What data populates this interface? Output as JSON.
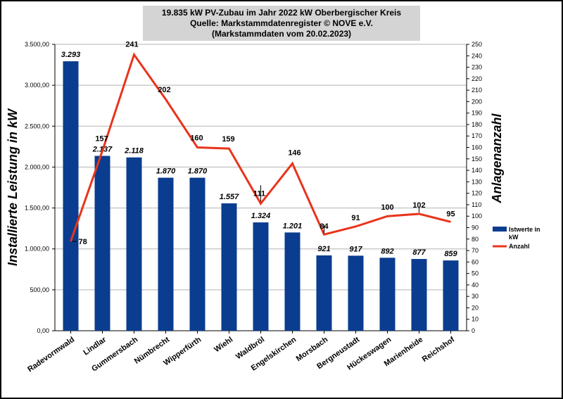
{
  "chart_data": {
    "type": "bar",
    "title_lines": [
      "19.835 kW  PV-Zubau  im Jahr 2022 kW  Oberbergischer Kreis",
      "Quelle: Markstammdatenregister © NOVE e.V.",
      "(Markstammdaten vom 20.02.2023)"
    ],
    "categories": [
      "Radevormwald",
      "Lindlar",
      "Gummersbach",
      "Nümbrecht",
      "Wipperfürth",
      "Wiehl",
      "Waldbröl",
      "Engelskirchen",
      "Morsbach",
      "Bergneustadt",
      "Hückeswagen",
      "Marienheide",
      "Reichshof"
    ],
    "series": [
      {
        "name": "Istwerte in kW",
        "type": "bar",
        "axis": "left",
        "color": "#0a3d8f",
        "values": [
          3293,
          2137,
          2118,
          1870,
          1870,
          1557,
          1324,
          1201,
          921,
          917,
          892,
          877,
          859
        ],
        "labels": [
          "3.293",
          "2.137",
          "2.118",
          "1.870",
          "1.870",
          "1.557",
          "1.324",
          "1.201",
          "921",
          "917",
          "892",
          "877",
          "859"
        ]
      },
      {
        "name": "Anzahl",
        "type": "line",
        "axis": "right",
        "color": "#e8341c",
        "values": [
          78,
          157,
          241,
          202,
          160,
          159,
          111,
          146,
          84,
          91,
          100,
          102,
          95
        ],
        "labels": [
          "78",
          "157",
          "241",
          "202",
          "160",
          "159",
          "111",
          "146",
          "84",
          "91",
          "100",
          "102",
          "95"
        ]
      }
    ],
    "ylabel": "Installierte Leistung in kW",
    "y2label": "Anlagenanzahl",
    "ylim": [
      0,
      3500
    ],
    "y2lim": [
      0,
      250
    ],
    "yticks": [
      "0,00",
      "500,00",
      "1.000,00",
      "1.500,00",
      "2.000,00",
      "2.500,00",
      "3.000,00",
      "3.500,00"
    ],
    "y2ticks": [
      "0",
      "10",
      "20",
      "30",
      "40",
      "50",
      "60",
      "70",
      "80",
      "90",
      "100",
      "110",
      "120",
      "130",
      "140",
      "150",
      "160",
      "170",
      "180",
      "190",
      "200",
      "210",
      "220",
      "230",
      "240",
      "250"
    ],
    "grid": true,
    "legend_position": "right",
    "legend": [
      {
        "label_lines": [
          "Istwerte in",
          "kW"
        ],
        "color": "#0a3d8f",
        "kind": "bar"
      },
      {
        "label_lines": [
          "Anzahl"
        ],
        "color": "#e8341c",
        "kind": "line"
      }
    ]
  }
}
